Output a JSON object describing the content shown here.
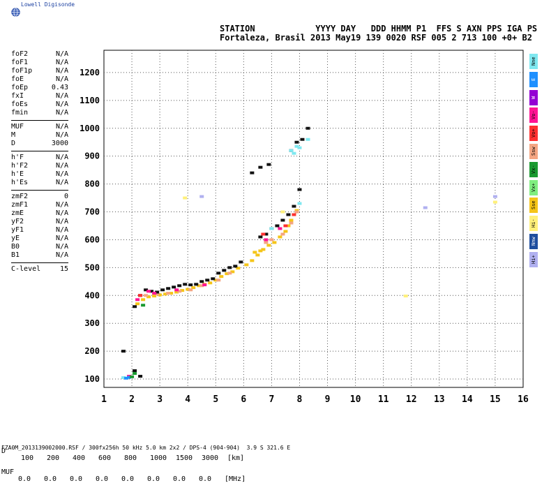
{
  "brand": {
    "text": "Lowell Digisonde",
    "icon": "globe-icon"
  },
  "header": {
    "line1": "STATION            YYYY DAY   DDD HHMM P1  FFS S AXN PPS IGA PS",
    "line2": "Fortaleza, Brasil 2013 May19 139 0020 RSF 005 2 713 100 +0+ B2"
  },
  "params": {
    "group1": [
      {
        "name": "foF2",
        "value": "N/A"
      },
      {
        "name": "foF1",
        "value": "N/A"
      },
      {
        "name": "foF1p",
        "value": "N/A"
      },
      {
        "name": "foE",
        "value": "N/A"
      },
      {
        "name": "foEp",
        "value": "0.43"
      },
      {
        "name": "fxI",
        "value": "N/A"
      },
      {
        "name": "foEs",
        "value": "N/A"
      },
      {
        "name": "fmin",
        "value": "N/A"
      }
    ],
    "group2": [
      {
        "name": "MUF",
        "value": "N/A"
      },
      {
        "name": "M",
        "value": "N/A"
      },
      {
        "name": "D",
        "value": "3000"
      }
    ],
    "group3": [
      {
        "name": "h'F",
        "value": "N/A"
      },
      {
        "name": "h'F2",
        "value": "N/A"
      },
      {
        "name": "h'E",
        "value": "N/A"
      },
      {
        "name": "h'Es",
        "value": "N/A"
      }
    ],
    "group4": [
      {
        "name": "zmF2",
        "value": "0"
      },
      {
        "name": "zmF1",
        "value": "N/A"
      },
      {
        "name": "zmE",
        "value": "N/A"
      },
      {
        "name": "yF2",
        "value": "N/A"
      },
      {
        "name": "yF1",
        "value": "N/A"
      },
      {
        "name": "yE",
        "value": "N/A"
      },
      {
        "name": "B0",
        "value": "N/A"
      },
      {
        "name": "B1",
        "value": "N/A"
      }
    ],
    "group5": [
      {
        "name": "C-level",
        "value": "15"
      }
    ]
  },
  "bottom": {
    "d_label": "D",
    "d_values": [
      "100",
      "200",
      "400",
      "600",
      "800",
      "1000",
      "1500",
      "3000",
      "[km]"
    ],
    "muf_label": "MUF",
    "muf_values": [
      "0.0",
      "0.0",
      "0.0",
      "0.0",
      "0.0",
      "0.0",
      "0.0",
      "0.0",
      "[MHz]"
    ]
  },
  "footer": "FZA0M_2013139002000.RSF / 300fx256h 50 kHz 5.0 km 2x2 / DPS-4 (904-904)  3.9 S 321.6 E",
  "legend": [
    {
      "label": "Nne",
      "color": "#7fe8f0"
    },
    {
      "label": "E",
      "color": "#1e90ff"
    },
    {
      "label": "W",
      "color": "#9400d3"
    },
    {
      "label": "Vo-",
      "color": "#ff1493"
    },
    {
      "label": "Vo+",
      "color": "#ff3030"
    },
    {
      "label": "Ssw",
      "color": "#f4a582"
    },
    {
      "label": "Vx-",
      "color": "#1a9a30"
    },
    {
      "label": "Vx+",
      "color": "#80ee80"
    },
    {
      "label": "Sse",
      "color": "#f5c518"
    },
    {
      "label": "Hi-",
      "color": "#fff07a"
    },
    {
      "label": "Nnw",
      "color": "#1f4e9e"
    },
    {
      "label": "Hi+",
      "color": "#b0b0f0"
    }
  ],
  "chart_data": {
    "type": "scatter",
    "title": "",
    "xlabel": "",
    "ylabel": "",
    "xlim": [
      1,
      16
    ],
    "ylim": [
      70,
      1280
    ],
    "xticks": [
      "1",
      "2",
      "3",
      "4",
      "5",
      "6",
      "7",
      "8",
      "9",
      "10",
      "11",
      "12",
      "13",
      "14",
      "15",
      "16"
    ],
    "yticks": [
      "100",
      "200",
      "300",
      "400",
      "500",
      "600",
      "700",
      "800",
      "900",
      "1000",
      "1100",
      "1200"
    ],
    "grid": true,
    "series": [
      {
        "color": "#f5c518",
        "points": [
          [
            2.2,
            370
          ],
          [
            2.4,
            385
          ],
          [
            2.6,
            395
          ],
          [
            2.8,
            398
          ],
          [
            3.0,
            402
          ],
          [
            3.2,
            405
          ],
          [
            3.4,
            408
          ],
          [
            3.6,
            412
          ],
          [
            3.8,
            418
          ],
          [
            4.0,
            422
          ],
          [
            4.2,
            428
          ],
          [
            4.4,
            435
          ],
          [
            4.6,
            440
          ],
          [
            4.8,
            445
          ],
          [
            5.0,
            455
          ],
          [
            5.2,
            468
          ],
          [
            5.4,
            478
          ],
          [
            5.6,
            485
          ],
          [
            5.8,
            498
          ],
          [
            6.1,
            510
          ],
          [
            6.3,
            525
          ],
          [
            6.5,
            545
          ],
          [
            6.7,
            565
          ],
          [
            6.9,
            580
          ],
          [
            7.1,
            590
          ],
          [
            7.3,
            610
          ],
          [
            7.5,
            630
          ],
          [
            7.6,
            650
          ],
          [
            7.7,
            670
          ],
          [
            7.8,
            690
          ],
          [
            7.9,
            705
          ],
          [
            6.4,
            555
          ],
          [
            6.6,
            560
          ]
        ]
      },
      {
        "color": "#f4a582",
        "points": [
          [
            2.5,
            400
          ],
          [
            2.9,
            405
          ],
          [
            3.3,
            408
          ],
          [
            3.7,
            415
          ],
          [
            4.1,
            420
          ],
          [
            4.5,
            435
          ],
          [
            5.1,
            455
          ],
          [
            5.5,
            480
          ],
          [
            6.8,
            590
          ],
          [
            7.0,
            600
          ],
          [
            7.4,
            620
          ],
          [
            7.7,
            660
          ],
          [
            7.9,
            700
          ]
        ]
      },
      {
        "color": "#111111",
        "points": [
          [
            2.1,
            360
          ],
          [
            2.3,
            400
          ],
          [
            2.5,
            420
          ],
          [
            2.7,
            415
          ],
          [
            2.9,
            412
          ],
          [
            3.1,
            420
          ],
          [
            3.3,
            425
          ],
          [
            3.5,
            430
          ],
          [
            3.7,
            435
          ],
          [
            3.9,
            440
          ],
          [
            4.1,
            438
          ],
          [
            4.3,
            440
          ],
          [
            4.5,
            450
          ],
          [
            4.7,
            455
          ],
          [
            4.9,
            460
          ],
          [
            5.1,
            480
          ],
          [
            5.3,
            490
          ],
          [
            5.5,
            500
          ],
          [
            5.7,
            505
          ],
          [
            5.9,
            520
          ],
          [
            6.6,
            610
          ],
          [
            6.8,
            620
          ],
          [
            7.0,
            640
          ],
          [
            7.2,
            650
          ],
          [
            7.4,
            670
          ],
          [
            7.6,
            690
          ],
          [
            7.8,
            720
          ],
          [
            8.0,
            780
          ],
          [
            6.6,
            860
          ],
          [
            6.9,
            870
          ],
          [
            7.7,
            920
          ],
          [
            7.9,
            950
          ],
          [
            8.1,
            960
          ],
          [
            8.3,
            1000
          ],
          [
            1.7,
            200
          ],
          [
            2.1,
            130
          ],
          [
            2.3,
            110
          ],
          [
            6.3,
            840
          ]
        ]
      },
      {
        "color": "#ff1493",
        "points": [
          [
            2.2,
            385
          ],
          [
            2.6,
            415
          ],
          [
            2.8,
            408
          ],
          [
            3.6,
            420
          ],
          [
            4.6,
            438
          ],
          [
            6.8,
            600
          ],
          [
            7.3,
            640
          ],
          [
            1.9,
            110
          ]
        ]
      },
      {
        "color": "#ff3030",
        "points": [
          [
            2.3,
            400
          ],
          [
            6.7,
            620
          ],
          [
            7.5,
            650
          ],
          [
            7.8,
            690
          ]
        ]
      },
      {
        "color": "#7fe8f0",
        "points": [
          [
            7.7,
            920
          ],
          [
            7.8,
            910
          ],
          [
            7.9,
            935
          ],
          [
            8.0,
            930
          ],
          [
            8.3,
            960
          ],
          [
            8.0,
            730
          ],
          [
            7.0,
            640
          ],
          [
            1.7,
            105
          ]
        ]
      },
      {
        "color": "#1e90ff",
        "points": [
          [
            1.8,
            103
          ],
          [
            1.9,
            106
          ]
        ]
      },
      {
        "color": "#1a9a30",
        "points": [
          [
            2.4,
            365
          ],
          [
            2.1,
            120
          ],
          [
            2.0,
            108
          ]
        ]
      },
      {
        "color": "#b0b0f0",
        "points": [
          [
            4.5,
            755
          ],
          [
            12.5,
            715
          ],
          [
            15.0,
            755
          ]
        ]
      },
      {
        "color": "#fff07a",
        "points": [
          [
            3.9,
            750
          ],
          [
            11.8,
            398
          ],
          [
            15.0,
            735
          ],
          [
            7.4,
            700
          ]
        ]
      }
    ]
  }
}
